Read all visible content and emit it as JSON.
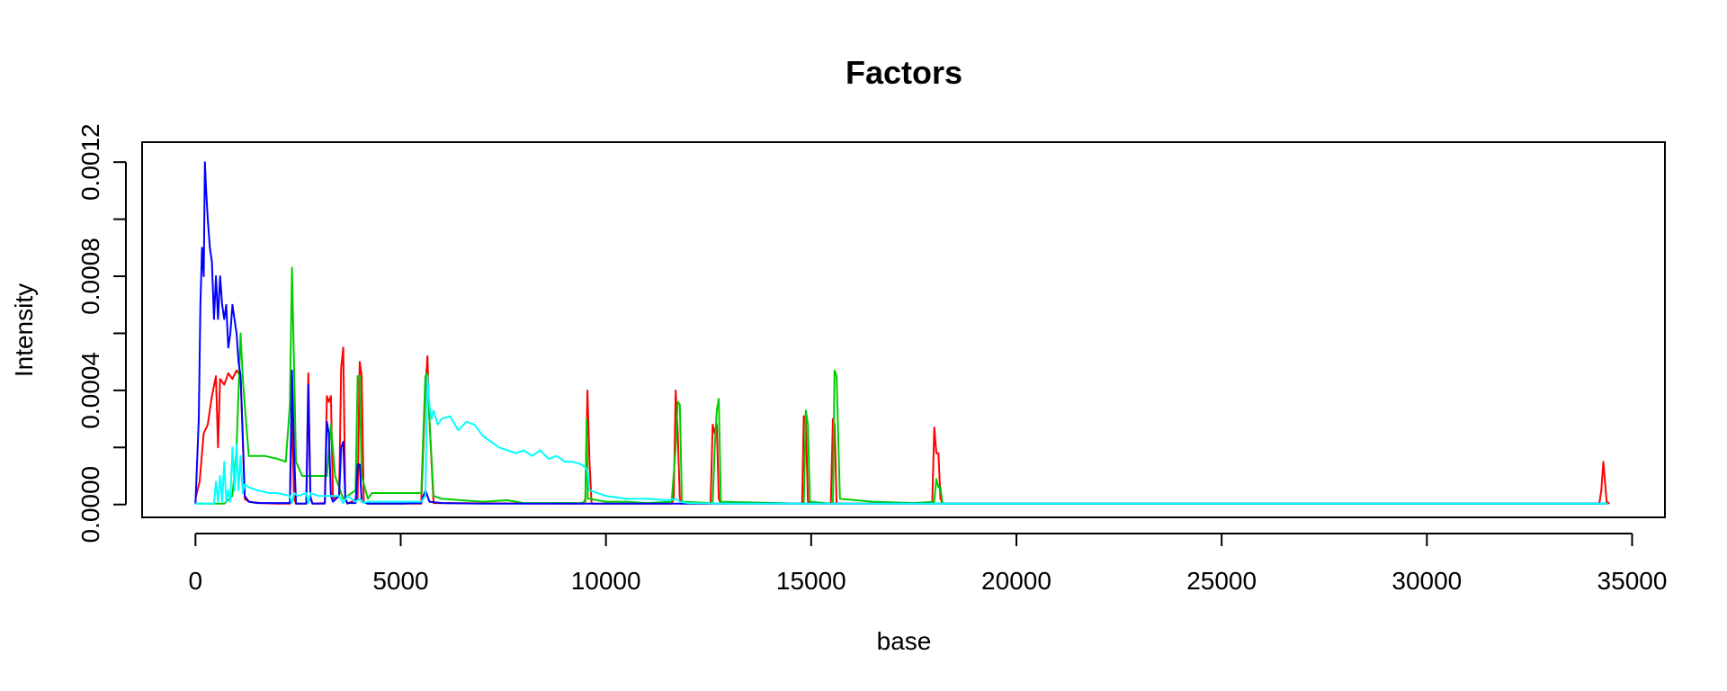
{
  "chart_data": {
    "type": "line",
    "title": "Factors",
    "xlabel": "base",
    "ylabel": "Intensity",
    "xlim": [
      -1300,
      35800
    ],
    "ylim": [
      -4.5e-05,
      0.00127
    ],
    "xticks": [
      0,
      5000,
      10000,
      15000,
      20000,
      25000,
      30000,
      35000
    ],
    "xtick_labels": [
      "0",
      "5000",
      "10000",
      "15000",
      "20000",
      "25000",
      "30000",
      "35000"
    ],
    "yticks": [
      0,
      0.0002,
      0.0004,
      0.0006,
      0.0008,
      0.001,
      0.0012
    ],
    "ytick_labels": [
      "0.0000",
      "",
      "0.0004",
      "",
      "0.0008",
      "",
      "0.0012"
    ],
    "grid": false,
    "legend": "none",
    "series": [
      {
        "color": "#ff0000",
        "x": [
          0,
          100,
          200,
          300,
          400,
          500,
          550,
          600,
          700,
          800,
          900,
          1000,
          1100,
          1200,
          1300,
          1600,
          2000,
          2300,
          2350,
          2400,
          2450,
          2700,
          2750,
          2800,
          2850,
          3150,
          3200,
          3250,
          3300,
          3350,
          3500,
          3550,
          3600,
          3650,
          3700,
          3950,
          4000,
          4050,
          4100,
          4200,
          5500,
          5600,
          5650,
          5700,
          5800,
          9450,
          9500,
          9550,
          9600,
          9650,
          11600,
          11650,
          11700,
          11750,
          11800,
          11850,
          12550,
          12600,
          12650,
          12700,
          12750,
          12800,
          14780,
          14820,
          14870,
          14920,
          14970,
          15480,
          15530,
          15570,
          15620,
          17950,
          18000,
          18050,
          18100,
          18150,
          18200,
          34200,
          34250,
          34300,
          34380,
          34450
        ],
        "y": [
          2e-05,
          8e-05,
          0.00025,
          0.00028,
          0.00038,
          0.00045,
          0.0002,
          0.00044,
          0.00042,
          0.00046,
          0.00044,
          0.00047,
          0.00045,
          2e-05,
          1e-05,
          5e-06,
          3e-06,
          3e-06,
          0.00035,
          2e-05,
          3e-06,
          3e-06,
          0.00046,
          3e-05,
          3e-06,
          5e-06,
          0.00038,
          0.00036,
          0.00038,
          2e-05,
          3e-05,
          0.00048,
          0.00055,
          2e-05,
          3e-06,
          2e-05,
          0.0005,
          0.00045,
          1e-05,
          3e-06,
          3e-06,
          0.0004,
          0.00052,
          0.0003,
          5e-06,
          3e-06,
          2e-05,
          0.0004,
          0.00015,
          3e-06,
          3e-06,
          2e-05,
          0.0004,
          0.00025,
          2e-05,
          3e-06,
          3e-06,
          0.00028,
          0.00025,
          0.00028,
          2e-05,
          3e-06,
          3e-06,
          0.00031,
          0.00029,
          1e-05,
          3e-06,
          3e-06,
          0.0003,
          0.00028,
          3e-06,
          3e-06,
          0.00027,
          0.00018,
          0.00018,
          2e-05,
          3e-06,
          3e-06,
          5e-05,
          0.00015,
          1e-05,
          3e-06
        ]
      },
      {
        "color": "#00cd00",
        "x": [
          0,
          700,
          900,
          1000,
          1100,
          1150,
          1200,
          1300,
          1500,
          1700,
          2000,
          2200,
          2300,
          2350,
          2400,
          2450,
          2600,
          2900,
          3200,
          3300,
          3400,
          3500,
          3600,
          3900,
          3950,
          4000,
          4050,
          4200,
          4300,
          4500,
          5000,
          5500,
          5600,
          5650,
          5700,
          5800,
          6000,
          7000,
          7600,
          8000,
          9400,
          9500,
          9530,
          9560,
          9600,
          10000,
          10500,
          11000,
          11600,
          11700,
          11750,
          11800,
          11850,
          12550,
          12600,
          12650,
          12700,
          12750,
          12800,
          14780,
          14820,
          14870,
          14920,
          14970,
          15480,
          15530,
          15570,
          15620,
          15700,
          16500,
          17500,
          18000,
          18050,
          18100,
          18150,
          18200,
          20000,
          25000,
          30000,
          34400
        ],
        "y": [
          3e-06,
          3e-06,
          3e-05,
          0.0002,
          0.0006,
          0.00045,
          0.00035,
          0.00017,
          0.00017,
          0.00017,
          0.00016,
          0.00015,
          0.00035,
          0.00083,
          0.0005,
          0.00015,
          0.0001,
          0.0001,
          0.0001,
          0.00028,
          0.0001,
          6e-05,
          2e-05,
          5e-05,
          0.00045,
          0.00045,
          0.0001,
          2e-05,
          4e-05,
          4e-05,
          4e-05,
          4e-05,
          0.00045,
          0.00046,
          0.0003,
          3e-05,
          2e-05,
          1e-05,
          1.5e-05,
          5e-06,
          5e-06,
          1e-05,
          0.0003,
          2e-05,
          2e-05,
          1e-05,
          1e-05,
          5e-06,
          1e-05,
          0.0002,
          0.00036,
          0.00035,
          1e-05,
          5e-06,
          3e-06,
          0.0002,
          0.00033,
          0.00037,
          1e-05,
          3e-06,
          3e-06,
          0.00033,
          0.00028,
          1e-05,
          3e-06,
          3e-06,
          0.00047,
          0.00045,
          2e-05,
          1e-05,
          5e-06,
          1e-05,
          9e-05,
          6e-05,
          6e-05,
          3e-06,
          3e-06,
          3e-06,
          3e-06,
          3e-06
        ]
      },
      {
        "color": "#0000ff",
        "x": [
          0,
          80,
          120,
          160,
          200,
          230,
          260,
          300,
          350,
          400,
          450,
          500,
          550,
          600,
          650,
          700,
          750,
          800,
          850,
          900,
          950,
          1000,
          1050,
          1100,
          1150,
          1200,
          1300,
          1500,
          2000,
          2300,
          2350,
          2400,
          2450,
          2700,
          2750,
          2800,
          2850,
          3150,
          3200,
          3250,
          3300,
          3350,
          3500,
          3550,
          3600,
          3650,
          3700,
          3900,
          3950,
          4000,
          4050,
          4200,
          5000,
          5500,
          5600,
          5650,
          5700,
          6000,
          7000,
          8000,
          9000,
          10000,
          34400
        ],
        "y": [
          3e-06,
          0.0003,
          0.0007,
          0.0009,
          0.0008,
          0.0012,
          0.0011,
          0.001,
          0.0009,
          0.00085,
          0.00065,
          0.0008,
          0.00065,
          0.0008,
          0.0007,
          0.00065,
          0.0007,
          0.00055,
          0.0006,
          0.0007,
          0.00065,
          0.0006,
          0.0005,
          0.00045,
          0.00025,
          3e-05,
          1e-05,
          5e-06,
          5e-06,
          5e-06,
          0.00047,
          0.0002,
          3e-06,
          3e-06,
          0.00042,
          2e-05,
          3e-06,
          3e-06,
          0.00029,
          0.00025,
          3e-05,
          1e-05,
          3e-05,
          0.0002,
          0.00022,
          2e-05,
          5e-06,
          5e-06,
          0.00014,
          0.00014,
          1e-05,
          3e-06,
          3e-06,
          5e-06,
          5e-05,
          3e-05,
          1e-05,
          5e-06,
          3e-06,
          3e-06,
          3e-06,
          3e-06,
          3e-06
        ]
      },
      {
        "color": "#00ffff",
        "x": [
          0,
          450,
          500,
          550,
          600,
          650,
          700,
          750,
          800,
          850,
          900,
          950,
          1000,
          1050,
          1100,
          1150,
          1200,
          1300,
          1500,
          1800,
          2000,
          2300,
          2350,
          2400,
          2500,
          2700,
          2750,
          2800,
          3000,
          3200,
          3500,
          3600,
          3700,
          3900,
          4000,
          4100,
          4200,
          5000,
          5500,
          5600,
          5650,
          5700,
          5750,
          5800,
          5900,
          6000,
          6200,
          6400,
          6600,
          6800,
          7000,
          7200,
          7400,
          7600,
          7800,
          8000,
          8200,
          8400,
          8600,
          8800,
          9000,
          9200,
          9400,
          9500,
          9550,
          9600,
          10000,
          10500,
          11000,
          11500,
          11700,
          11800,
          12000,
          13000,
          15000,
          20000,
          25000,
          30000,
          34400
        ],
        "y": [
          3e-06,
          3e-06,
          8e-05,
          1e-05,
          0.0001,
          1e-05,
          0.00015,
          1e-05,
          5e-05,
          1e-05,
          0.0002,
          5e-05,
          0.00021,
          5e-05,
          0.00017,
          4e-05,
          7e-05,
          6e-05,
          5e-05,
          4e-05,
          4e-05,
          3e-05,
          5e-06,
          4e-05,
          3e-05,
          4e-05,
          5e-06,
          4e-05,
          3e-05,
          3e-05,
          3e-05,
          5e-06,
          3e-05,
          1e-05,
          2e-05,
          5e-06,
          1e-05,
          1e-05,
          1e-05,
          3e-05,
          0.00045,
          0.00035,
          0.0003,
          0.00033,
          0.00028,
          0.0003,
          0.00031,
          0.00026,
          0.00029,
          0.00028,
          0.00024,
          0.00022,
          0.0002,
          0.00019,
          0.00018,
          0.00019,
          0.00017,
          0.00019,
          0.00016,
          0.00017,
          0.00015,
          0.00015,
          0.00014,
          0.00013,
          0.00012,
          5e-05,
          3e-05,
          2e-05,
          2e-05,
          1.5e-05,
          2e-05,
          1e-05,
          5e-06,
          3e-06,
          3e-06,
          3e-06,
          3e-06,
          3e-06,
          3e-06
        ]
      }
    ]
  }
}
